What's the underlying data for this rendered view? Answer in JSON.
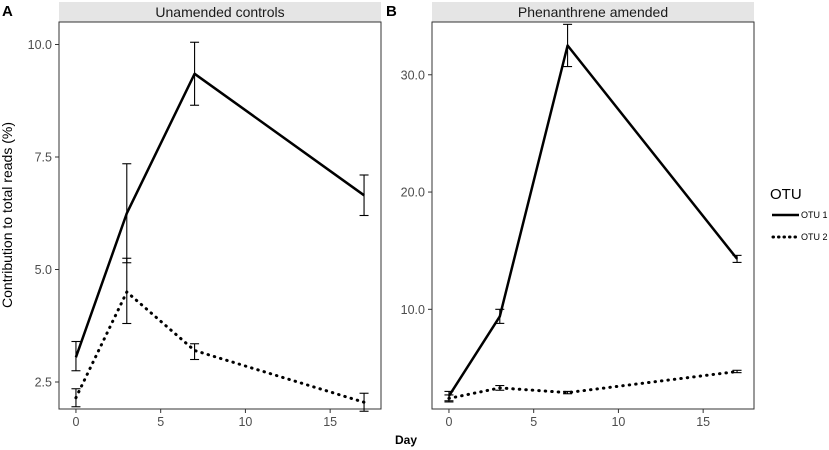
{
  "chart_data": [
    {
      "type": "line",
      "panel_letter": "A",
      "title": "Unamended controls",
      "xlabel": "Day",
      "ylabel": "Contribution to total reads (%)",
      "xlim": [
        -1,
        18
      ],
      "ylim": [
        1.9,
        10.5
      ],
      "x_ticks": [
        0,
        5,
        10,
        15
      ],
      "x_tick_labels": [
        "0",
        "5",
        "10",
        "15"
      ],
      "y_ticks": [
        2.5,
        5.0,
        7.5,
        10.0
      ],
      "y_tick_labels": [
        "2.5",
        "5.0",
        "7.5",
        "10.0"
      ],
      "series": [
        {
          "name": "OTU 1",
          "style": "solid",
          "x": [
            0,
            3,
            7,
            17
          ],
          "values": [
            3.05,
            6.25,
            9.35,
            6.65
          ],
          "err_low": [
            2.75,
            5.15,
            8.65,
            6.2
          ],
          "err_high": [
            3.4,
            7.35,
            10.05,
            7.1
          ]
        },
        {
          "name": "OTU 2",
          "style": "dotted",
          "x": [
            0,
            3,
            7,
            17
          ],
          "values": [
            2.15,
            4.5,
            3.2,
            2.05
          ],
          "err_low": [
            1.95,
            3.8,
            3.0,
            1.85
          ],
          "err_high": [
            2.35,
            5.25,
            3.35,
            2.25
          ]
        }
      ]
    },
    {
      "type": "line",
      "panel_letter": "B",
      "title": "Phenanthrene amended",
      "xlabel": "Day",
      "ylabel": "",
      "xlim": [
        -1,
        18
      ],
      "ylim": [
        1.5,
        34.5
      ],
      "x_ticks": [
        0,
        5,
        10,
        15
      ],
      "x_tick_labels": [
        "0",
        "5",
        "10",
        "15"
      ],
      "y_ticks": [
        10,
        20,
        30
      ],
      "y_tick_labels": [
        "10.0",
        "20.0",
        "30.0"
      ],
      "series": [
        {
          "name": "OTU 1",
          "style": "solid",
          "x": [
            0,
            3,
            7,
            17
          ],
          "values": [
            2.6,
            9.4,
            32.5,
            14.3
          ],
          "err_low": [
            2.2,
            8.8,
            30.7,
            14.0
          ],
          "err_high": [
            3.0,
            10.0,
            34.3,
            14.6
          ]
        },
        {
          "name": "OTU 2",
          "style": "dotted",
          "x": [
            0,
            3,
            7,
            17
          ],
          "values": [
            2.4,
            3.3,
            2.9,
            4.7
          ],
          "err_low": [
            2.1,
            3.1,
            2.8,
            4.6
          ],
          "err_high": [
            2.7,
            3.5,
            3.0,
            4.8
          ]
        }
      ]
    }
  ],
  "legend": {
    "title": "OTU",
    "items": [
      {
        "label": "OTU 1",
        "style": "solid"
      },
      {
        "label": "OTU 2",
        "style": "dotted"
      }
    ]
  },
  "colors": {
    "line": "#000000",
    "strip_bg": "#e5e5e5",
    "panel_border": "#333333",
    "tick_text": "#4d4d4d"
  }
}
